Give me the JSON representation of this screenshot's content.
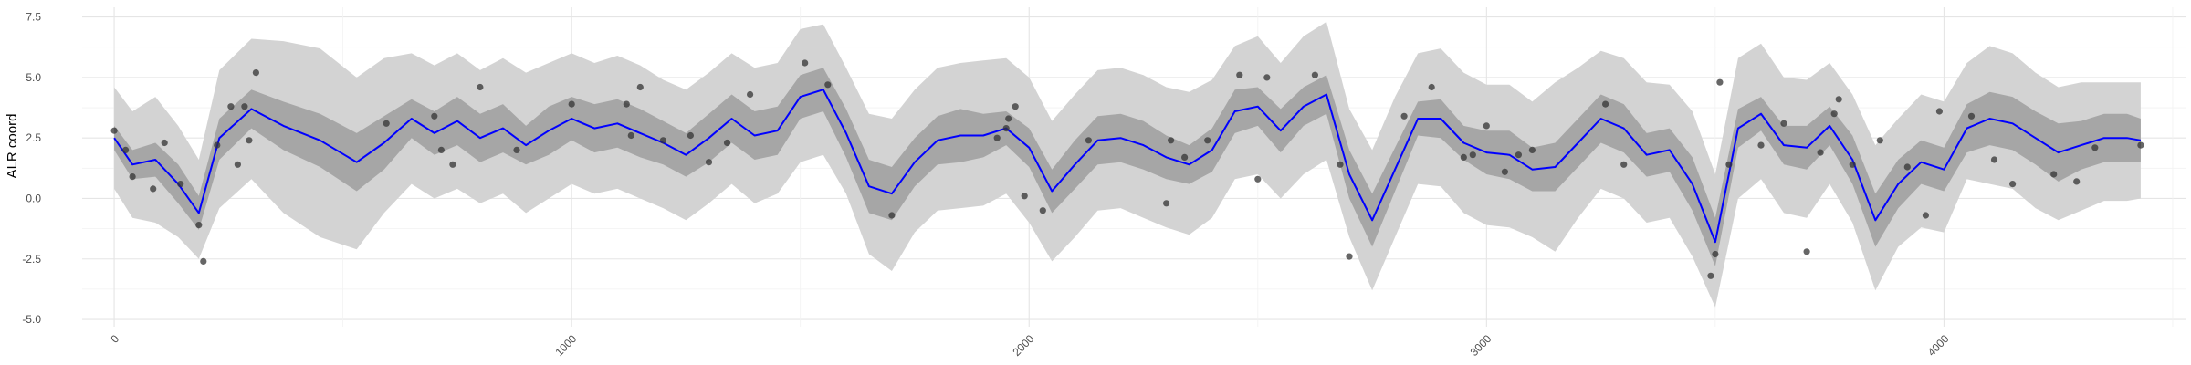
{
  "chart_data": {
    "type": "line",
    "ylabel": "ALR coord",
    "xlabel": "",
    "title": "",
    "xlim": [
      -70,
      4530
    ],
    "ylim": [
      -5.3,
      7.9
    ],
    "x_ticks": [
      0,
      1000,
      2000,
      3000,
      4000
    ],
    "x_tick_labels": [
      "0",
      "1000",
      "2000",
      "3000",
      "4000"
    ],
    "y_ticks": [
      -5.0,
      -2.5,
      0.0,
      2.5,
      5.0,
      7.5
    ],
    "y_tick_labels": [
      "-5.0",
      "-2.5",
      "0.0",
      "2.5",
      "5.0",
      "7.5"
    ],
    "grid": true,
    "colors": {
      "mean_line": "#0000ff",
      "inner_band": "#a6a6a6",
      "outer_band": "#d3d3d3",
      "points": "#333333"
    },
    "mean_curve": {
      "x": [
        0,
        40,
        90,
        140,
        185,
        230,
        300,
        370,
        450,
        530,
        590,
        650,
        700,
        750,
        800,
        850,
        900,
        950,
        1000,
        1050,
        1100,
        1150,
        1200,
        1250,
        1300,
        1350,
        1400,
        1450,
        1500,
        1550,
        1600,
        1650,
        1700,
        1750,
        1800,
        1850,
        1900,
        1950,
        2000,
        2050,
        2100,
        2150,
        2200,
        2250,
        2300,
        2350,
        2400,
        2450,
        2500,
        2550,
        2600,
        2650,
        2700,
        2750,
        2800,
        2850,
        2900,
        2950,
        3000,
        3050,
        3100,
        3150,
        3200,
        3250,
        3300,
        3350,
        3400,
        3450,
        3500,
        3550,
        3600,
        3650,
        3700,
        3750,
        3800,
        3850,
        3900,
        3950,
        4000,
        4050,
        4100,
        4150,
        4200,
        4250,
        4300,
        4350,
        4400,
        4430
      ],
      "y": [
        2.5,
        1.4,
        1.6,
        0.6,
        -0.6,
        2.5,
        3.7,
        3.0,
        2.4,
        1.5,
        2.3,
        3.3,
        2.7,
        3.2,
        2.5,
        2.9,
        2.2,
        2.8,
        3.3,
        2.9,
        3.1,
        2.7,
        2.3,
        1.8,
        2.5,
        3.3,
        2.6,
        2.8,
        4.2,
        4.5,
        2.7,
        0.5,
        0.2,
        1.5,
        2.4,
        2.6,
        2.6,
        2.9,
        2.1,
        0.3,
        1.4,
        2.4,
        2.5,
        2.2,
        1.7,
        1.4,
        2.0,
        3.6,
        3.8,
        2.8,
        3.8,
        4.3,
        1.0,
        -0.9,
        1.2,
        3.3,
        3.3,
        2.3,
        1.9,
        1.8,
        1.2,
        1.3,
        2.3,
        3.3,
        2.9,
        1.8,
        2.0,
        0.6,
        -1.8,
        2.9,
        3.5,
        2.2,
        2.1,
        3.0,
        1.6,
        -0.9,
        0.6,
        1.5,
        1.2,
        2.9,
        3.3,
        3.1,
        2.5,
        1.9,
        2.2,
        2.5,
        2.5,
        2.4
      ]
    },
    "inner_band": {
      "x": [
        0,
        40,
        90,
        140,
        185,
        230,
        300,
        370,
        450,
        530,
        590,
        650,
        700,
        750,
        800,
        850,
        900,
        950,
        1000,
        1050,
        1100,
        1150,
        1200,
        1250,
        1300,
        1350,
        1400,
        1450,
        1500,
        1550,
        1600,
        1650,
        1700,
        1750,
        1800,
        1850,
        1900,
        1950,
        2000,
        2050,
        2100,
        2150,
        2200,
        2250,
        2300,
        2350,
        2400,
        2450,
        2500,
        2550,
        2600,
        2650,
        2700,
        2750,
        2800,
        2850,
        2900,
        2950,
        3000,
        3050,
        3100,
        3150,
        3200,
        3250,
        3300,
        3350,
        3400,
        3450,
        3500,
        3550,
        3600,
        3650,
        3700,
        3750,
        3800,
        3850,
        3900,
        3950,
        4000,
        4050,
        4100,
        4150,
        4200,
        4250,
        4300,
        4350,
        4400,
        4430
      ],
      "lower": [
        2.0,
        0.8,
        0.9,
        -0.2,
        -1.3,
        1.6,
        2.9,
        2.0,
        1.3,
        0.3,
        1.2,
        2.5,
        1.8,
        2.2,
        1.5,
        1.9,
        1.4,
        1.8,
        2.4,
        1.9,
        2.1,
        1.7,
        1.4,
        0.9,
        1.5,
        2.3,
        1.6,
        1.8,
        3.3,
        3.6,
        1.7,
        -0.6,
        -0.9,
        0.5,
        1.4,
        1.5,
        1.7,
        2.2,
        1.3,
        -0.6,
        0.4,
        1.4,
        1.5,
        1.2,
        0.8,
        0.6,
        1.1,
        2.7,
        3.0,
        1.9,
        3.0,
        3.5,
        0.0,
        -2.0,
        0.3,
        2.6,
        2.5,
        1.6,
        1.0,
        0.8,
        0.3,
        0.3,
        1.3,
        2.3,
        1.9,
        0.9,
        1.1,
        -0.5,
        -2.8,
        2.1,
        2.8,
        1.4,
        1.2,
        2.2,
        0.6,
        -2.0,
        -0.4,
        0.6,
        0.3,
        1.9,
        2.2,
        2.0,
        1.4,
        0.7,
        1.2,
        1.5,
        1.5,
        1.5
      ],
      "upper": [
        3.0,
        2.0,
        2.3,
        1.4,
        0.1,
        3.3,
        4.5,
        4.0,
        3.5,
        2.7,
        3.4,
        4.1,
        3.6,
        4.2,
        3.5,
        3.9,
        3.0,
        3.8,
        4.2,
        3.9,
        4.1,
        3.7,
        3.2,
        2.7,
        3.5,
        4.3,
        3.6,
        3.8,
        5.1,
        5.4,
        3.7,
        1.6,
        1.3,
        2.5,
        3.4,
        3.7,
        3.5,
        3.6,
        2.9,
        1.2,
        2.4,
        3.4,
        3.5,
        3.2,
        2.6,
        2.2,
        2.9,
        4.5,
        4.6,
        3.7,
        4.6,
        5.1,
        2.0,
        0.2,
        2.1,
        4.0,
        4.1,
        3.0,
        2.8,
        2.8,
        2.1,
        2.3,
        3.3,
        4.3,
        3.9,
        2.7,
        2.9,
        1.7,
        -0.8,
        3.7,
        4.2,
        3.0,
        3.0,
        3.8,
        2.6,
        0.2,
        1.6,
        2.4,
        2.1,
        3.9,
        4.4,
        4.2,
        3.6,
        3.1,
        3.2,
        3.5,
        3.5,
        3.3
      ]
    },
    "outer_band": {
      "x": [
        0,
        40,
        90,
        140,
        185,
        230,
        300,
        370,
        450,
        530,
        590,
        650,
        700,
        750,
        800,
        850,
        900,
        950,
        1000,
        1050,
        1100,
        1150,
        1200,
        1250,
        1300,
        1350,
        1400,
        1450,
        1500,
        1550,
        1600,
        1650,
        1700,
        1750,
        1800,
        1850,
        1900,
        1950,
        2000,
        2050,
        2100,
        2150,
        2200,
        2250,
        2300,
        2350,
        2400,
        2450,
        2500,
        2550,
        2600,
        2650,
        2700,
        2750,
        2800,
        2850,
        2900,
        2950,
        3000,
        3050,
        3100,
        3150,
        3200,
        3250,
        3300,
        3350,
        3400,
        3450,
        3500,
        3550,
        3600,
        3650,
        3700,
        3750,
        3800,
        3850,
        3900,
        3950,
        4000,
        4050,
        4100,
        4150,
        4200,
        4250,
        4300,
        4350,
        4400,
        4430
      ],
      "lower": [
        0.4,
        -0.8,
        -1.0,
        -1.6,
        -2.5,
        -0.4,
        0.8,
        -0.6,
        -1.6,
        -2.1,
        -0.6,
        0.6,
        0.0,
        0.4,
        -0.2,
        0.2,
        -0.6,
        0.0,
        0.6,
        0.2,
        0.4,
        0.0,
        -0.4,
        -0.9,
        -0.2,
        0.6,
        -0.2,
        0.2,
        1.5,
        1.8,
        0.2,
        -2.3,
        -3.0,
        -1.4,
        -0.5,
        -0.4,
        -0.3,
        0.2,
        -1.0,
        -2.6,
        -1.6,
        -0.5,
        -0.4,
        -0.8,
        -1.2,
        -1.5,
        -0.8,
        0.8,
        1.0,
        0.0,
        1.0,
        1.6,
        -1.6,
        -3.8,
        -1.6,
        0.6,
        0.5,
        -0.6,
        -1.1,
        -1.2,
        -1.6,
        -2.2,
        -0.8,
        0.4,
        0.0,
        -1.0,
        -0.8,
        -2.4,
        -4.5,
        0.0,
        0.8,
        -0.6,
        -0.8,
        0.6,
        -1.0,
        -3.8,
        -2.0,
        -1.2,
        -1.4,
        0.8,
        0.6,
        0.4,
        -0.4,
        -0.9,
        -0.5,
        -0.1,
        -0.1,
        0.0
      ],
      "upper": [
        4.6,
        3.6,
        4.2,
        3.0,
        1.6,
        5.3,
        6.6,
        6.5,
        6.2,
        5.0,
        5.8,
        6.0,
        5.5,
        6.0,
        5.3,
        5.8,
        5.2,
        5.6,
        6.0,
        5.6,
        5.9,
        5.5,
        4.9,
        4.5,
        5.2,
        6.0,
        5.4,
        5.6,
        7.0,
        7.2,
        5.4,
        3.5,
        3.3,
        4.5,
        5.4,
        5.6,
        5.7,
        5.8,
        5.0,
        3.2,
        4.3,
        5.3,
        5.4,
        5.1,
        4.6,
        4.4,
        4.9,
        6.3,
        6.7,
        5.6,
        6.7,
        7.3,
        3.7,
        2.0,
        4.2,
        6.0,
        6.2,
        5.2,
        4.7,
        4.7,
        4.0,
        4.8,
        5.4,
        6.1,
        5.8,
        4.8,
        4.7,
        3.6,
        1.0,
        5.8,
        6.4,
        5.0,
        4.9,
        5.6,
        4.3,
        2.2,
        3.3,
        4.3,
        4.0,
        5.6,
        6.3,
        6.0,
        5.2,
        4.6,
        4.8,
        4.8,
        4.8,
        4.8
      ]
    },
    "points": {
      "x": [
        0,
        25,
        40,
        85,
        110,
        145,
        185,
        195,
        225,
        255,
        270,
        285,
        295,
        310,
        595,
        700,
        715,
        740,
        800,
        880,
        1000,
        1120,
        1130,
        1150,
        1200,
        1260,
        1300,
        1340,
        1390,
        1510,
        1560,
        1700,
        1930,
        1950,
        1955,
        1970,
        1990,
        2030,
        2130,
        2300,
        2310,
        2340,
        2390,
        2460,
        2500,
        2520,
        2625,
        2680,
        2700,
        2820,
        2880,
        2950,
        2970,
        3000,
        3040,
        3070,
        3100,
        3260,
        3300,
        3490,
        3500,
        3510,
        3530,
        3600,
        3650,
        3700,
        3730,
        3760,
        3770,
        3800,
        3860,
        3920,
        3960,
        3990,
        4060,
        4110,
        4150,
        4240,
        4290,
        4330,
        4430
      ],
      "y": [
        2.8,
        2.0,
        0.9,
        0.4,
        2.3,
        0.6,
        -1.1,
        -2.6,
        2.2,
        3.8,
        1.4,
        3.8,
        2.4,
        5.2,
        3.1,
        3.4,
        2.0,
        1.4,
        4.6,
        2.0,
        3.9,
        3.9,
        2.6,
        4.6,
        2.4,
        2.6,
        1.5,
        2.3,
        4.3,
        5.6,
        4.7,
        -0.7,
        2.5,
        2.9,
        3.3,
        3.8,
        0.1,
        -0.5,
        2.4,
        -0.2,
        2.4,
        1.7,
        2.4,
        5.1,
        0.8,
        5.0,
        5.1,
        1.4,
        -2.4,
        3.4,
        4.6,
        1.7,
        1.8,
        3.0,
        1.1,
        1.8,
        2.0,
        3.9,
        1.4,
        -3.2,
        -2.3,
        4.8,
        1.4,
        2.2,
        3.1,
        -2.2,
        1.9,
        3.5,
        4.1,
        1.4,
        2.4,
        1.3,
        -0.7,
        3.6,
        3.4,
        1.6,
        0.6,
        1.0,
        0.7,
        2.1,
        2.2
      ]
    }
  }
}
